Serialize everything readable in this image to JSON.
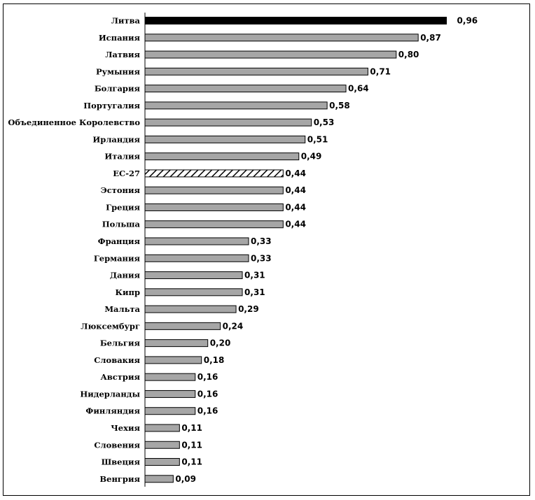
{
  "chart_data": {
    "type": "bar",
    "orientation": "horizontal",
    "categories": [
      "Литва",
      "Испания",
      "Латвия",
      "Румыния",
      "Болгария",
      "Португалия",
      "Объединенное Королевство",
      "Ирландия",
      "Италия",
      "ЕС-27",
      "Эстония",
      "Греция",
      "Польша",
      "Франция",
      "Германия",
      "Дания",
      "Кипр",
      "Мальта",
      "Люксембург",
      "Бельгия",
      "Словакия",
      "Австрия",
      "Нидерланды",
      "Финляндия",
      "Чехия",
      "Словения",
      "Швеция",
      "Венгрия"
    ],
    "values": [
      0.96,
      0.87,
      0.8,
      0.71,
      0.64,
      0.58,
      0.53,
      0.51,
      0.49,
      0.44,
      0.44,
      0.44,
      0.44,
      0.33,
      0.33,
      0.31,
      0.31,
      0.29,
      0.24,
      0.2,
      0.18,
      0.16,
      0.16,
      0.16,
      0.11,
      0.11,
      0.11,
      0.09
    ],
    "data_labels": [
      "0,96",
      "0,87",
      "0,80",
      "0,71",
      "0,64",
      "0,58",
      "0,53",
      "0,51",
      "0,49",
      "0,44",
      "0,44",
      "0,44",
      "0,44",
      "0,33",
      "0,33",
      "0,31",
      "0,31",
      "0,29",
      "0,24",
      "0,20",
      "0,18",
      "0,16",
      "0,16",
      "0,16",
      "0,11",
      "0,11",
      "0,11",
      "0,09"
    ],
    "bar_styles": [
      "black",
      "gray",
      "gray",
      "gray",
      "gray",
      "gray",
      "gray",
      "gray",
      "gray",
      "hatched",
      "gray",
      "gray",
      "gray",
      "gray",
      "gray",
      "gray",
      "gray",
      "gray",
      "gray",
      "gray",
      "gray",
      "gray",
      "gray",
      "gray",
      "gray",
      "gray",
      "gray",
      "gray"
    ],
    "title": "",
    "xlabel": "",
    "ylabel": "",
    "xlim": [
      0,
      1.0
    ],
    "grid": false,
    "legend": "none",
    "colors": {
      "bar_default": "#a6a6a6",
      "bar_highlight": "#000000",
      "bar_hatch": "#000000",
      "outline": "#000000"
    }
  }
}
